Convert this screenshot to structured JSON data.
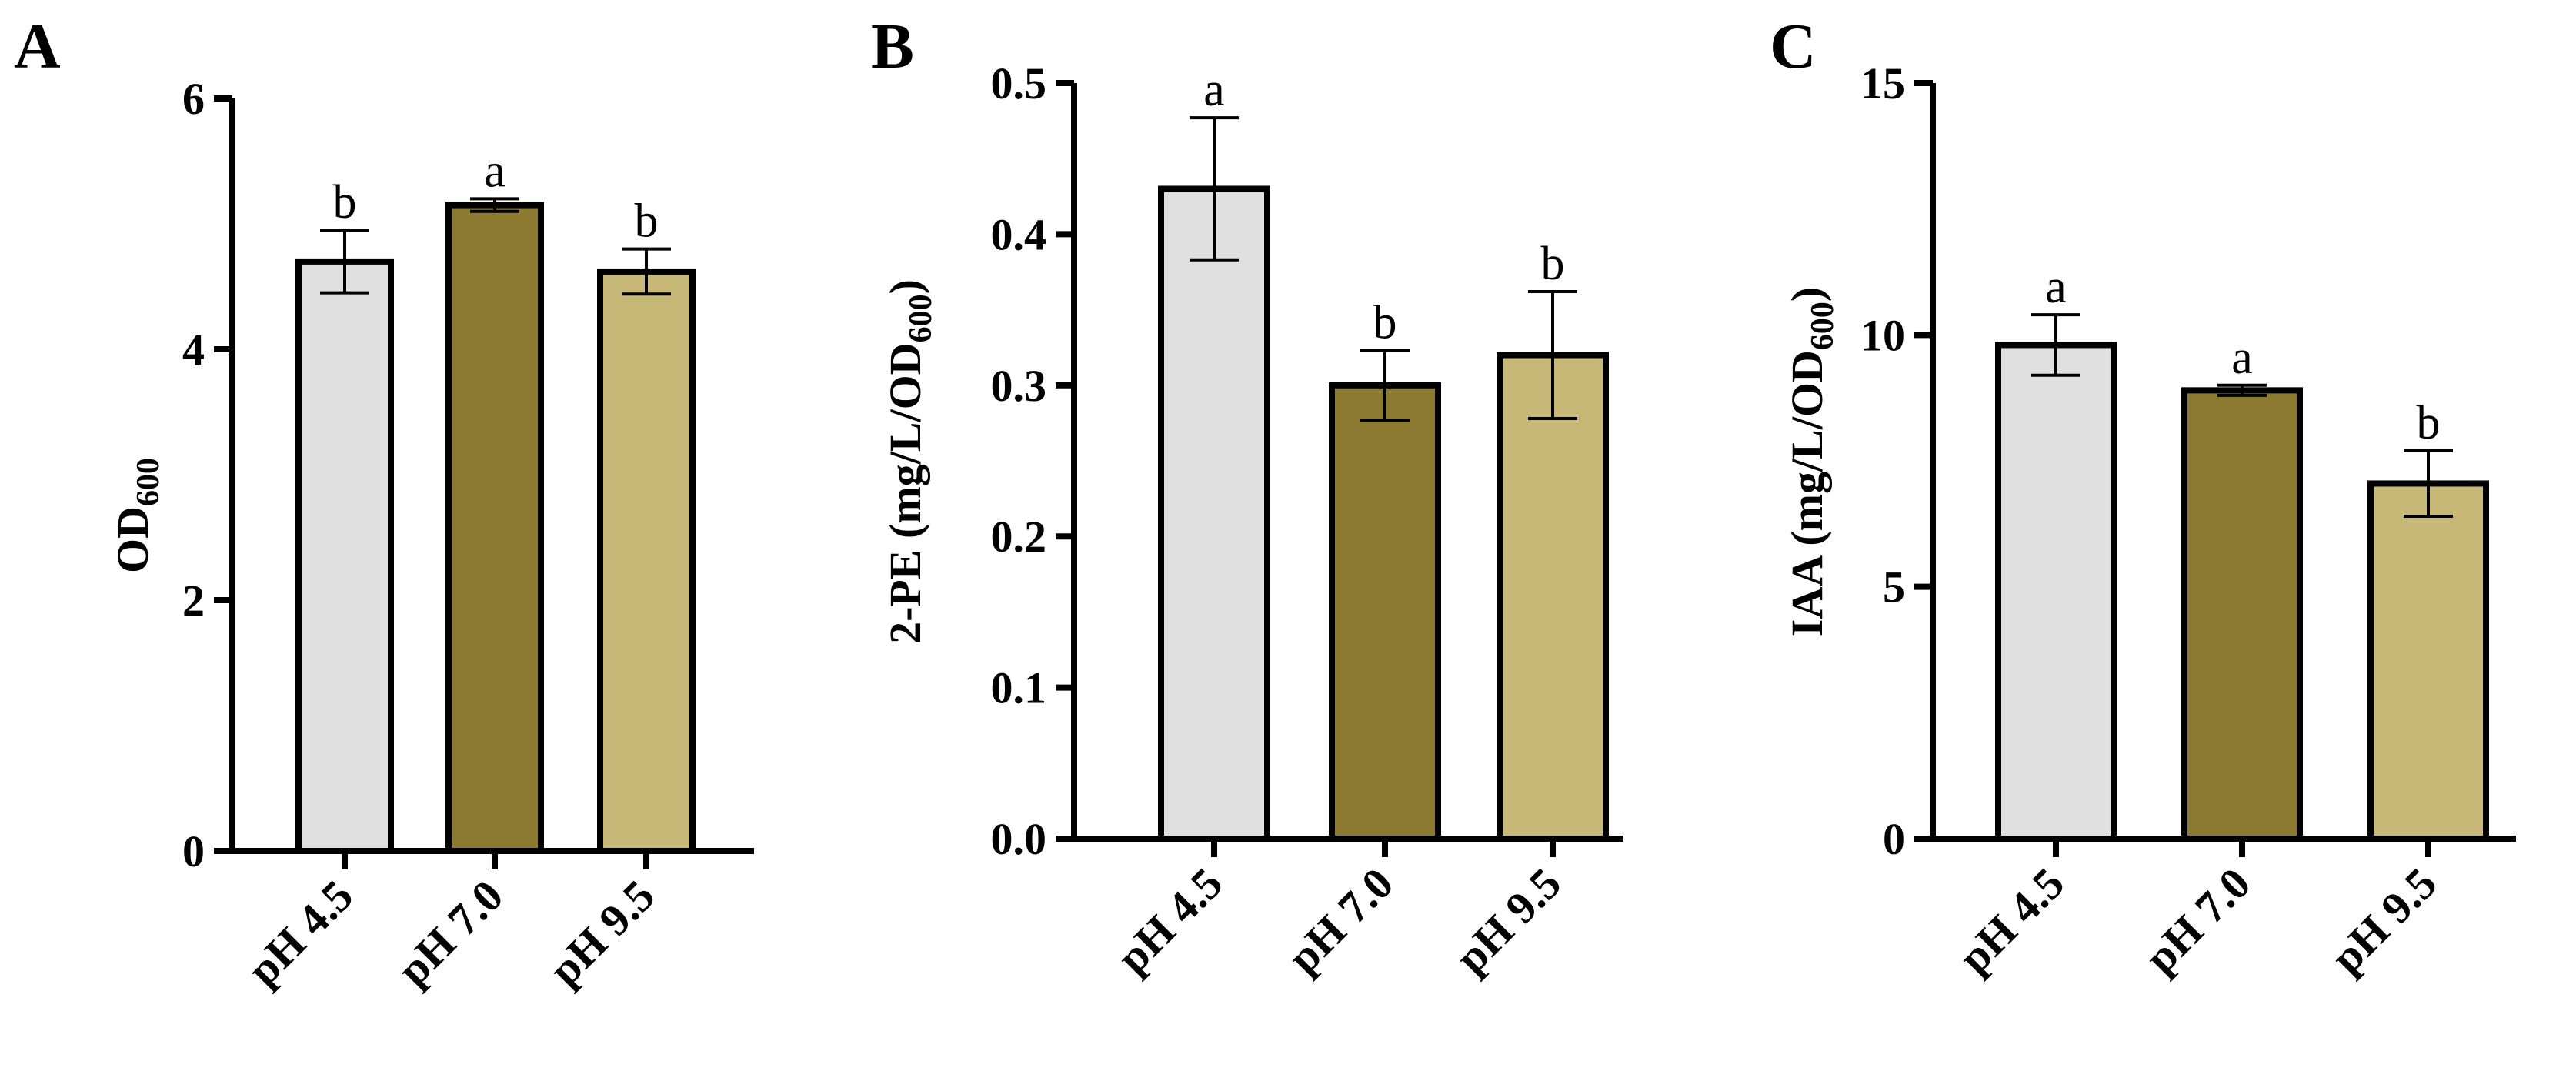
{
  "chart_data": [
    {
      "type": "bar",
      "panel": "A",
      "categories": [
        "pH 4.5",
        "pH 7.0",
        "pH 9.5"
      ],
      "values": [
        4.7,
        5.15,
        4.62
      ],
      "errors": [
        0.25,
        0.05,
        0.18
      ],
      "significance": [
        "b",
        "a",
        "b"
      ],
      "ylabel_main": "OD",
      "ylabel_sub": "600",
      "ylabel_tail": "",
      "ylim": [
        0,
        6
      ],
      "yticks": [
        0,
        2,
        4,
        6
      ],
      "ytick_labels": [
        "0",
        "2",
        "4",
        "6"
      ],
      "colors": [
        "#e0e0e0",
        "#8c7a30",
        "#c8b878"
      ]
    },
    {
      "type": "bar",
      "panel": "B",
      "categories": [
        "pH 4.5",
        "pH 7.0",
        "pH 9.5"
      ],
      "values": [
        0.43,
        0.3,
        0.32
      ],
      "errors": [
        0.047,
        0.023,
        0.042
      ],
      "significance": [
        "a",
        "b",
        "b"
      ],
      "ylabel_main": "2-PE (mg/L/OD",
      "ylabel_sub": "600",
      "ylabel_tail": ")",
      "ylim": [
        0,
        0.5
      ],
      "yticks": [
        0,
        0.1,
        0.2,
        0.3,
        0.4,
        0.5
      ],
      "ytick_labels": [
        "0.0",
        "0.1",
        "0.2",
        "0.3",
        "0.4",
        "0.5"
      ],
      "colors": [
        "#e0e0e0",
        "#8c7a30",
        "#c8b878"
      ]
    },
    {
      "type": "bar",
      "panel": "C",
      "categories": [
        "pH 4.5",
        "pH 7.0",
        "pH 9.5"
      ],
      "values": [
        9.8,
        8.9,
        7.05
      ],
      "errors": [
        0.6,
        0.1,
        0.65
      ],
      "significance": [
        "a",
        "a",
        "b"
      ],
      "ylabel_main": "IAA (mg/L/OD",
      "ylabel_sub": "600",
      "ylabel_tail": ")",
      "ylim": [
        0,
        15
      ],
      "yticks": [
        0,
        5,
        10,
        15
      ],
      "ytick_labels": [
        "0",
        "5",
        "10",
        "15"
      ],
      "colors": [
        "#e0e0e0",
        "#8c7a30",
        "#c8b878"
      ]
    }
  ]
}
